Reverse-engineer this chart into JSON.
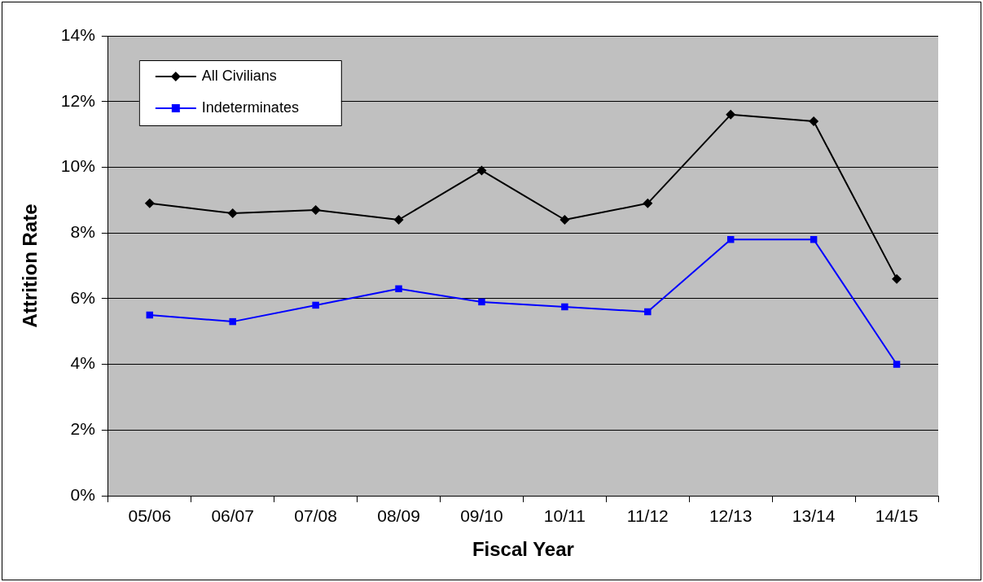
{
  "chart_data": {
    "type": "line",
    "xlabel": "Fiscal Year",
    "ylabel": "Attrition Rate",
    "categories": [
      "05/06",
      "06/07",
      "07/08",
      "08/09",
      "09/10",
      "10/11",
      "11/12",
      "12/13",
      "13/14",
      "14/15"
    ],
    "series": [
      {
        "name": "All Civilians",
        "color": "#000000",
        "marker": "diamond",
        "values": [
          8.9,
          8.6,
          8.7,
          8.4,
          9.9,
          8.4,
          8.9,
          11.6,
          11.4,
          6.6
        ]
      },
      {
        "name": "Indeterminates",
        "color": "#0000ff",
        "marker": "square",
        "values": [
          5.5,
          5.3,
          5.8,
          6.3,
          5.9,
          5.75,
          5.6,
          7.8,
          7.8,
          4.0
        ]
      }
    ],
    "ylim": [
      0,
      14
    ],
    "yticks": [
      {
        "value": 0,
        "label": "0%"
      },
      {
        "value": 2,
        "label": "2%"
      },
      {
        "value": 4,
        "label": "4%"
      },
      {
        "value": 6,
        "label": "6%"
      },
      {
        "value": 8,
        "label": "8%"
      },
      {
        "value": 10,
        "label": "10%"
      },
      {
        "value": 12,
        "label": "12%"
      },
      {
        "value": 14,
        "label": "14%"
      }
    ],
    "grid": "y",
    "legend": "top left",
    "line_style": "solid"
  }
}
